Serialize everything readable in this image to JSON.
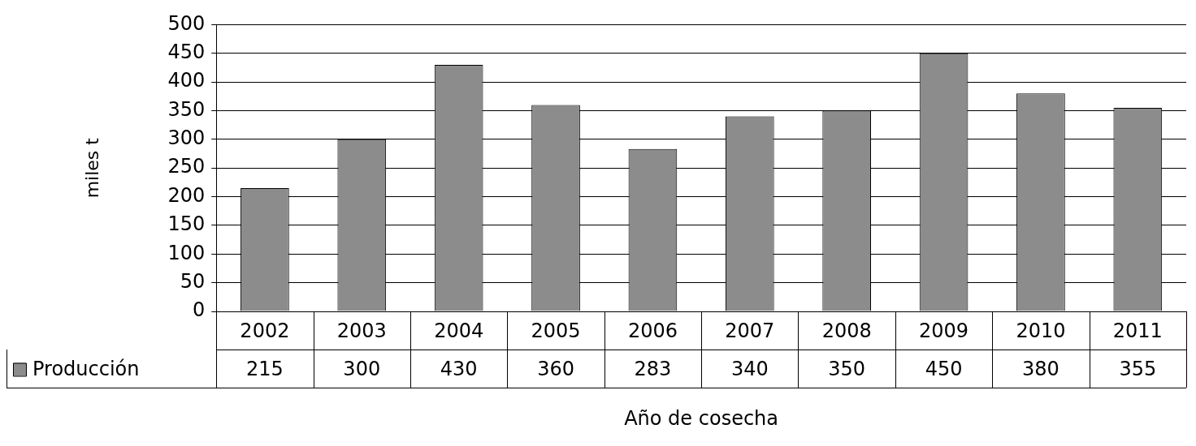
{
  "chart_data": {
    "type": "bar",
    "ylabel": "miles t",
    "xlabel": "Año de cosecha",
    "categories": [
      "2002",
      "2003",
      "2004",
      "2005",
      "2006",
      "2007",
      "2008",
      "2009",
      "2010",
      "2011"
    ],
    "series": [
      {
        "name": "Producción",
        "color": "#8c8c8c",
        "values": [
          215,
          300,
          430,
          360,
          283,
          340,
          350,
          450,
          380,
          355
        ]
      }
    ],
    "ylim": [
      0,
      500
    ],
    "yticks": [
      0,
      50,
      100,
      150,
      200,
      250,
      300,
      350,
      400,
      450,
      500
    ],
    "grid": "y",
    "data_labels": true,
    "legend": "bottom left"
  }
}
